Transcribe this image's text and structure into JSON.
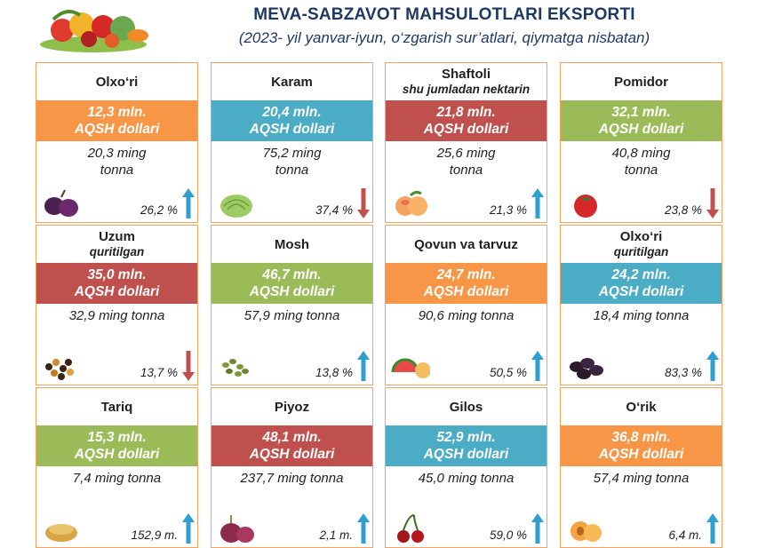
{
  "header": {
    "title": "MEVA-SABZAVOT MAHSULOTLARI EKSPORTI",
    "subtitle": "(2023- yil yanvar-iyun, o‘zgarish sur’atlari, qiymatga nisbatan)"
  },
  "colors": {
    "orange": "#f79646",
    "blue": "#4bacc6",
    "red": "#c0504d",
    "green": "#9bbb59",
    "arrow_up": "#2e9fcf",
    "arrow_down": "#c0504d"
  },
  "cards": [
    {
      "name": "Olxo‘ri",
      "sub": "",
      "value_line1": "12,3 mln.",
      "value_line2": "AQSH dollari",
      "color": "#f79646",
      "qty": "20,3 ming\ntonna",
      "pct": "26,2 %",
      "trend": "up",
      "icon": "plum-icon"
    },
    {
      "name": "Karam",
      "sub": "",
      "value_line1": "20,4 mln.",
      "value_line2": "AQSH dollari",
      "color": "#4bacc6",
      "qty": "75,2 ming\ntonna",
      "pct": "37,4 %",
      "trend": "down",
      "icon": "cabbage-icon"
    },
    {
      "name": "Shaftoli",
      "sub": "shu jumladan nektarin",
      "value_line1": "21,8 mln.",
      "value_line2": "AQSH dollari",
      "color": "#c0504d",
      "qty": "25,6 ming\ntonna",
      "pct": "21,3 %",
      "trend": "up",
      "icon": "peach-icon"
    },
    {
      "name": "Pomidor",
      "sub": "",
      "value_line1": "32,1 mln.",
      "value_line2": "AQSH dollari",
      "color": "#9bbb59",
      "qty": "40,8 ming\ntonna",
      "pct": "23,8 %",
      "trend": "down",
      "icon": "tomato-icon"
    },
    {
      "name": "Uzum",
      "sub": "quritilgan",
      "value_line1": "35,0 mln.",
      "value_line2": "AQSH dollari",
      "color": "#c0504d",
      "qty": "32,9 ming tonna",
      "pct": "13,7 %",
      "trend": "down",
      "icon": "raisin-icon"
    },
    {
      "name": "Mosh",
      "sub": "",
      "value_line1": "46,7 mln.",
      "value_line2": "AQSH dollari",
      "color": "#9bbb59",
      "qty": "57,9 ming tonna",
      "pct": "13,8 %",
      "trend": "up",
      "icon": "mung-bean-icon"
    },
    {
      "name": "Qovun va tarvuz",
      "sub": "",
      "value_line1": "24,7 mln.",
      "value_line2": "AQSH dollari",
      "color": "#f79646",
      "qty": "90,6 ming tonna",
      "pct": "50,5 %",
      "trend": "up",
      "icon": "melon-icon"
    },
    {
      "name": "Olxo‘ri",
      "sub": "quritilgan",
      "value_line1": "24,2 mln.",
      "value_line2": "AQSH dollari",
      "color": "#4bacc6",
      "qty": "18,4 ming tonna",
      "pct": "83,3 %",
      "trend": "up",
      "icon": "prune-icon"
    },
    {
      "name": "Tariq",
      "sub": "",
      "value_line1": "15,3 mln.",
      "value_line2": "AQSH dollari",
      "color": "#9bbb59",
      "qty": "7,4 ming tonna",
      "pct": "152,9 m.",
      "trend": "up",
      "icon": "millet-icon"
    },
    {
      "name": "Piyoz",
      "sub": "",
      "value_line1": "48,1 mln.",
      "value_line2": "AQSH dollari",
      "color": "#c0504d",
      "qty": "237,7 ming tonna",
      "pct": "2,1 m.",
      "trend": "up",
      "icon": "onion-icon"
    },
    {
      "name": "Gilos",
      "sub": "",
      "value_line1": "52,9 mln.",
      "value_line2": "AQSH dollari",
      "color": "#4bacc6",
      "qty": "45,0 ming tonna",
      "pct": "59,0 %",
      "trend": "up",
      "icon": "cherry-icon"
    },
    {
      "name": "O‘rik",
      "sub": "",
      "value_line1": "36,8 mln.",
      "value_line2": "AQSH dollari",
      "color": "#f79646",
      "qty": "57,4 ming tonna",
      "pct": "6,4 m.",
      "trend": "up",
      "icon": "apricot-icon"
    }
  ]
}
